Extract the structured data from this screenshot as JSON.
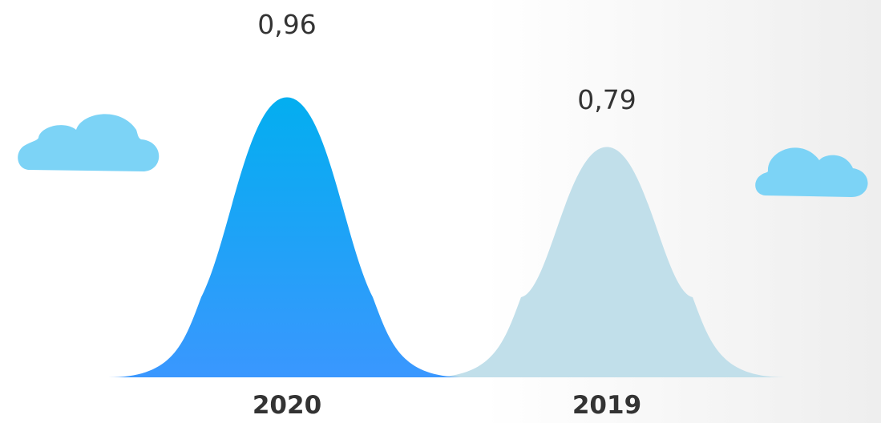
{
  "chart_data": {
    "type": "area",
    "categories": [
      "2020",
      "2019"
    ],
    "values": [
      0.96,
      0.79
    ],
    "value_labels": [
      "0,96",
      "0,79"
    ],
    "title": "",
    "xlabel": "",
    "ylabel": "",
    "ylim": [
      0,
      1
    ]
  },
  "colors": {
    "primary_top": "#03aef0",
    "primary_bottom": "#3a97fe",
    "secondary": "#c1dfea",
    "cloud": "#7cd3f6",
    "background_shade": "#eeeeee"
  }
}
